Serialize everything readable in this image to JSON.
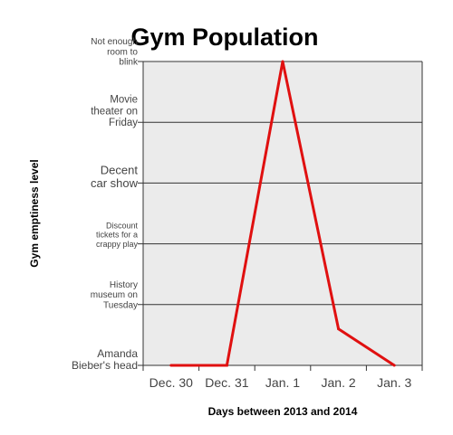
{
  "chart_data": {
    "type": "line",
    "title": "Gym Population",
    "xlabel": "Days between 2013 and 2014",
    "ylabel": "Gym emptiness level",
    "categories": [
      "Dec. 30",
      "Dec. 31",
      "Jan. 1",
      "Jan. 2",
      "Jan. 3"
    ],
    "y_levels": [
      [
        "Amanda",
        "Bieber's head"
      ],
      [
        "History",
        "museum on",
        "Tuesday"
      ],
      [
        "Discount",
        "tickets for a",
        "crappy play"
      ],
      [
        "Decent",
        "car show"
      ],
      [
        "Movie",
        "theater on",
        "Friday"
      ],
      [
        "Not enough",
        "room to",
        "blink"
      ]
    ],
    "ylim": [
      0,
      5
    ],
    "series": [
      {
        "points": [
          {
            "x": "Dec. 30",
            "y": 0
          },
          {
            "x": "Dec. 31",
            "y": 0
          },
          {
            "x": "Jan. 1",
            "y": 5
          },
          {
            "x": "Jan. 2",
            "y": 0.6
          },
          {
            "x": "Jan. 3",
            "y": 0
          }
        ]
      }
    ],
    "grid": true,
    "colors": {
      "line": "#e01010",
      "plot_background": "#ebebeb",
      "grid": "#333333"
    }
  }
}
